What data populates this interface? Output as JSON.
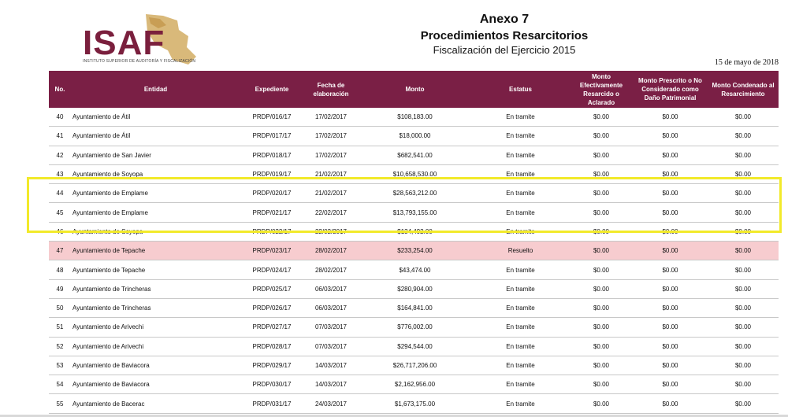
{
  "logo": {
    "text": "ISAF",
    "subtitle": "INSTITUTO SUPERIOR DE AUDITORÍA Y FISCALIZACIÓN"
  },
  "header": {
    "title": "Anexo 7",
    "subtitle": "Procedimientos Resarcitorios",
    "fiscal": "Fiscalización del Ejercicio 2015",
    "date": "15 de mayo de 2018"
  },
  "columns": [
    "No.",
    "Entidad",
    "Expediente",
    "Fecha de elaboración",
    "Monto",
    "Estatus",
    "Monto Efectivamente Resarcido o Aclarado",
    "Monto Prescrito o No Considerado como Daño Patrimonial",
    "Monto Condenado al Resarcimiento"
  ],
  "rows": [
    {
      "no": "40",
      "entidad": "Ayuntamiento de Átil",
      "expediente": "PRDP/016/17",
      "fecha": "17/02/2017",
      "monto": "$108,183.00",
      "estatus": "En tramite",
      "resarcido": "$0.00",
      "prescrito": "$0.00",
      "condenado": "$0.00"
    },
    {
      "no": "41",
      "entidad": "Ayuntamiento de Átil",
      "expediente": "PRDP/017/17",
      "fecha": "17/02/2017",
      "monto": "$18,000.00",
      "estatus": "En tramite",
      "resarcido": "$0.00",
      "prescrito": "$0.00",
      "condenado": "$0.00"
    },
    {
      "no": "42",
      "entidad": "Ayuntamiento de San Javier",
      "expediente": "PRDP/018/17",
      "fecha": "17/02/2017",
      "monto": "$682,541.00",
      "estatus": "En tramite",
      "resarcido": "$0.00",
      "prescrito": "$0.00",
      "condenado": "$0.00"
    },
    {
      "no": "43",
      "entidad": "Ayuntamiento de Soyopa",
      "expediente": "PRDP/019/17",
      "fecha": "21/02/2017",
      "monto": "$10,658,530.00",
      "estatus": "En tramite",
      "resarcido": "$0.00",
      "prescrito": "$0.00",
      "condenado": "$0.00"
    },
    {
      "no": "44",
      "entidad": "Ayuntamiento de Emplame",
      "expediente": "PRDP/020/17",
      "fecha": "21/02/2017",
      "monto": "$28,563,212.00",
      "estatus": "En tramite",
      "resarcido": "$0.00",
      "prescrito": "$0.00",
      "condenado": "$0.00"
    },
    {
      "no": "45",
      "entidad": "Ayuntamiento de Emplame",
      "expediente": "PRDP/021/17",
      "fecha": "22/02/2017",
      "monto": "$13,793,155.00",
      "estatus": "En tramite",
      "resarcido": "$0.00",
      "prescrito": "$0.00",
      "condenado": "$0.00"
    },
    {
      "no": "46",
      "entidad": "Ayuntamiento de Soyopa",
      "expediente": "PRDP/022/17",
      "fecha": "22/02/2017",
      "monto": "$134,492.00",
      "estatus": "En tramite",
      "resarcido": "$0.00",
      "prescrito": "$0.00",
      "condenado": "$0.00"
    },
    {
      "no": "47",
      "entidad": "Ayuntamiento de Tepache",
      "expediente": "PRDP/023/17",
      "fecha": "28/02/2017",
      "monto": "$233,254.00",
      "estatus": "Resuelto",
      "resarcido": "$0.00",
      "prescrito": "$0.00",
      "condenado": "$0.00",
      "highlight": true
    },
    {
      "no": "48",
      "entidad": "Ayuntamiento de Tepache",
      "expediente": "PRDP/024/17",
      "fecha": "28/02/2017",
      "monto": "$43,474.00",
      "estatus": "En tramite",
      "resarcido": "$0.00",
      "prescrito": "$0.00",
      "condenado": "$0.00"
    },
    {
      "no": "49",
      "entidad": "Ayuntamiento de Trincheras",
      "expediente": "PRDP/025/17",
      "fecha": "06/03/2017",
      "monto": "$280,904.00",
      "estatus": "En tramite",
      "resarcido": "$0.00",
      "prescrito": "$0.00",
      "condenado": "$0.00"
    },
    {
      "no": "50",
      "entidad": "Ayuntamiento de Trincheras",
      "expediente": "PRDP/026/17",
      "fecha": "06/03/2017",
      "monto": "$164,841.00",
      "estatus": "En tramite",
      "resarcido": "$0.00",
      "prescrito": "$0.00",
      "condenado": "$0.00"
    },
    {
      "no": "51",
      "entidad": "Ayuntamiento de Arivechi",
      "expediente": "PRDP/027/17",
      "fecha": "07/03/2017",
      "monto": "$776,002.00",
      "estatus": "En tramite",
      "resarcido": "$0.00",
      "prescrito": "$0.00",
      "condenado": "$0.00"
    },
    {
      "no": "52",
      "entidad": "Ayuntamiento de Arivechi",
      "expediente": "PRDP/028/17",
      "fecha": "07/03/2017",
      "monto": "$294,544.00",
      "estatus": "En tramite",
      "resarcido": "$0.00",
      "prescrito": "$0.00",
      "condenado": "$0.00"
    },
    {
      "no": "53",
      "entidad": "Ayuntamiento de Baviacora",
      "expediente": "PRDP/029/17",
      "fecha": "14/03/2017",
      "monto": "$26,717,206.00",
      "estatus": "En tramite",
      "resarcido": "$0.00",
      "prescrito": "$0.00",
      "condenado": "$0.00"
    },
    {
      "no": "54",
      "entidad": "Ayuntamiento de Baviacora",
      "expediente": "PRDP/030/17",
      "fecha": "14/03/2017",
      "monto": "$2,162,956.00",
      "estatus": "En tramite",
      "resarcido": "$0.00",
      "prescrito": "$0.00",
      "condenado": "$0.00"
    },
    {
      "no": "55",
      "entidad": "Ayuntamiento de Bacerac",
      "expediente": "PRDP/031/17",
      "fecha": "24/03/2017",
      "monto": "$1,673,175.00",
      "estatus": "En tramite",
      "resarcido": "$0.00",
      "prescrito": "$0.00",
      "condenado": "$0.00"
    }
  ]
}
